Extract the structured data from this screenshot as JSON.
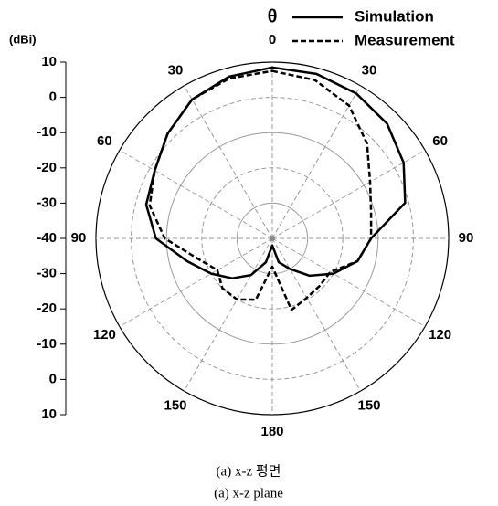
{
  "chart_data": {
    "type": "polar",
    "radial_unit_label": "(dBi)",
    "angle_label": "θ",
    "x": [
      0,
      15,
      30,
      45,
      60,
      75,
      90,
      105,
      120,
      135,
      150,
      165,
      180,
      195,
      210,
      225,
      240,
      255,
      270,
      285,
      300,
      315,
      330,
      345
    ],
    "series": [
      {
        "name": "Simulation",
        "color": "#000000",
        "dash": false,
        "values": [
          8.5,
          8.3,
          7.5,
          6,
          3,
          -1,
          -12,
          -15,
          -20,
          -25,
          -30,
          -33,
          -38,
          -33,
          -28,
          -24,
          -20,
          -15,
          -7,
          -3,
          -1.5,
          2,
          5.5,
          7.5
        ]
      },
      {
        "name": "Measurement",
        "color": "#000000",
        "dash": true,
        "values": [
          7.5,
          6.5,
          3.5,
          -2,
          -8,
          -11,
          -12,
          -15,
          -21,
          -21,
          -20.5,
          -19,
          -32,
          -22,
          -20,
          -20,
          -22,
          -18,
          -9.5,
          -4,
          -1.5,
          2,
          5.5,
          7
        ]
      }
    ],
    "rlim": [
      -40,
      10
    ],
    "rticks": [
      -40,
      -30,
      -20,
      -10,
      0,
      10
    ],
    "angle_ticks": [
      0,
      30,
      60,
      90,
      120,
      150,
      180
    ],
    "captions": [
      "(a) x-z 평면",
      "(a) x-z plane"
    ]
  }
}
